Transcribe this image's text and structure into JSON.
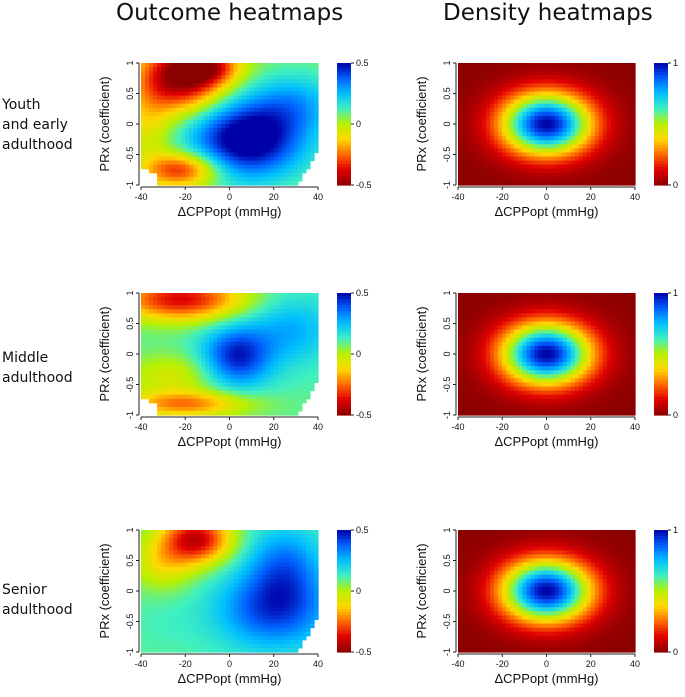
{
  "column_titles": [
    "Outcome heatmaps",
    "Density heatmaps"
  ],
  "row_labels": [
    [
      "Youth",
      "and early",
      "adulthood"
    ],
    [
      "Middle",
      "adulthood"
    ],
    [
      "Senior",
      "adulthood"
    ]
  ],
  "colors": {
    "jet": [
      "#8b0000",
      "#e00000",
      "#ff6a00",
      "#ffd800",
      "#b8f000",
      "#40f0c0",
      "#00bfff",
      "#0060ff",
      "#0000a8"
    ],
    "density_bg": "#a50000"
  },
  "chart_data": [
    {
      "type": "heatmap",
      "kind": "outcome",
      "row": 0,
      "col": 0,
      "title": "",
      "xlabel": "ΔCPPopt (mmHg)",
      "ylabel": "PRx (coefficient)",
      "xlim": [
        -40,
        40
      ],
      "ylim": [
        -1,
        1
      ],
      "xticks": [
        -40,
        -20,
        0,
        20,
        40
      ],
      "yticks": [
        -1,
        -0.5,
        0,
        0.5,
        1
      ],
      "colorbar": {
        "min": -0.5,
        "max": 0.5,
        "tick_labels": [
          "0.5",
          "0",
          "-0.5"
        ]
      },
      "features": [
        {
          "x": -22,
          "y": 0.75,
          "v": -0.55,
          "sx": 14,
          "sy": 0.38
        },
        {
          "x": -10,
          "y": 0.95,
          "v": -0.3,
          "sx": 10,
          "sy": 0.2
        },
        {
          "x": 8,
          "y": -0.25,
          "v": 0.55,
          "sx": 18,
          "sy": 0.45
        },
        {
          "x": 30,
          "y": 0.35,
          "v": 0.2,
          "sx": 14,
          "sy": 0.35
        },
        {
          "x": -22,
          "y": -0.75,
          "v": -0.4,
          "sx": 12,
          "sy": 0.2
        },
        {
          "x": -37,
          "y": 0.0,
          "v": -0.12,
          "sx": 8,
          "sy": 0.4
        }
      ],
      "base": 0.06,
      "mask_bottom_left": true,
      "mask_bottom_right": true
    },
    {
      "type": "heatmap",
      "kind": "outcome",
      "row": 1,
      "col": 0,
      "title": "",
      "xlabel": "ΔCPPopt (mmHg)",
      "ylabel": "PRx (coefficient)",
      "xlim": [
        -40,
        40
      ],
      "ylim": [
        -1,
        1
      ],
      "xticks": [
        -40,
        -20,
        0,
        20,
        40
      ],
      "yticks": [
        -1,
        -0.5,
        0,
        0.5,
        1
      ],
      "colorbar": {
        "min": -0.5,
        "max": 0.5,
        "tick_labels": [
          "0.5",
          "0",
          "-0.5"
        ]
      },
      "features": [
        {
          "x": -22,
          "y": 0.9,
          "v": -0.45,
          "sx": 20,
          "sy": 0.25
        },
        {
          "x": 3,
          "y": -0.05,
          "v": 0.4,
          "sx": 11,
          "sy": 0.35
        },
        {
          "x": 28,
          "y": 0.4,
          "v": 0.2,
          "sx": 14,
          "sy": 0.4
        },
        {
          "x": -25,
          "y": -0.35,
          "v": -0.12,
          "sx": 16,
          "sy": 0.25
        },
        {
          "x": -20,
          "y": -0.82,
          "v": -0.3,
          "sx": 20,
          "sy": 0.15
        }
      ],
      "base": 0.1,
      "mask_bottom_left": true,
      "mask_bottom_right": true
    },
    {
      "type": "heatmap",
      "kind": "outcome",
      "row": 2,
      "col": 0,
      "title": "",
      "xlabel": "ΔCPPopt (mmHg)",
      "ylabel": "PRx (coefficient)",
      "xlim": [
        -40,
        40
      ],
      "ylim": [
        -1,
        1
      ],
      "xticks": [
        -40,
        -20,
        0,
        20,
        40
      ],
      "yticks": [
        -1,
        -0.5,
        0,
        0.5,
        1
      ],
      "colorbar": {
        "min": -0.5,
        "max": 0.5,
        "tick_labels": [
          "0.5",
          "0",
          "-0.5"
        ]
      },
      "features": [
        {
          "x": -15,
          "y": 0.85,
          "v": -0.48,
          "sx": 11,
          "sy": 0.28
        },
        {
          "x": -30,
          "y": 0.45,
          "v": -0.15,
          "sx": 10,
          "sy": 0.3
        },
        {
          "x": 20,
          "y": -0.3,
          "v": 0.35,
          "sx": 18,
          "sy": 0.45
        },
        {
          "x": 25,
          "y": 0.45,
          "v": 0.25,
          "sx": 12,
          "sy": 0.45
        },
        {
          "x": -28,
          "y": -0.5,
          "v": 0.05,
          "sx": 12,
          "sy": 0.3
        }
      ],
      "base": 0.1,
      "mask_bottom_left": false,
      "mask_bottom_right": true
    },
    {
      "type": "heatmap",
      "kind": "density",
      "row": 0,
      "col": 1,
      "title": "",
      "xlabel": "ΔCPPopt (mmHg)",
      "ylabel": "PRx (coefficient)",
      "xlim": [
        -40,
        40
      ],
      "ylim": [
        -1,
        1
      ],
      "xticks": [
        -40,
        -20,
        0,
        20,
        40
      ],
      "yticks": [
        -1,
        -0.5,
        0,
        0.5,
        1
      ],
      "colorbar": {
        "min": 0,
        "max": 1,
        "tick_labels": [
          "1",
          "0"
        ]
      },
      "center": [
        0,
        0
      ],
      "radius": [
        22,
        0.55
      ]
    },
    {
      "type": "heatmap",
      "kind": "density",
      "row": 1,
      "col": 1,
      "title": "",
      "xlabel": "ΔCPPopt (mmHg)",
      "ylabel": "PRx (coefficient)",
      "xlim": [
        -40,
        40
      ],
      "ylim": [
        -1,
        1
      ],
      "xticks": [
        -40,
        -20,
        0,
        20,
        40
      ],
      "yticks": [
        -1,
        -0.5,
        0,
        0.5,
        1
      ],
      "colorbar": {
        "min": 0,
        "max": 1,
        "tick_labels": [
          "1",
          "0"
        ]
      },
      "center": [
        0,
        0
      ],
      "radius": [
        22,
        0.55
      ]
    },
    {
      "type": "heatmap",
      "kind": "density",
      "row": 2,
      "col": 1,
      "title": "",
      "xlabel": "ΔCPPopt (mmHg)",
      "ylabel": "PRx (coefficient)",
      "xlim": [
        -40,
        40
      ],
      "ylim": [
        -1,
        1
      ],
      "xticks": [
        -40,
        -20,
        0,
        20,
        40
      ],
      "yticks": [
        -1,
        -0.5,
        0,
        0.5,
        1
      ],
      "colorbar": {
        "min": 0,
        "max": 1,
        "tick_labels": [
          "1",
          "0"
        ]
      },
      "center": [
        0,
        0
      ],
      "radius": [
        22,
        0.55
      ]
    }
  ]
}
